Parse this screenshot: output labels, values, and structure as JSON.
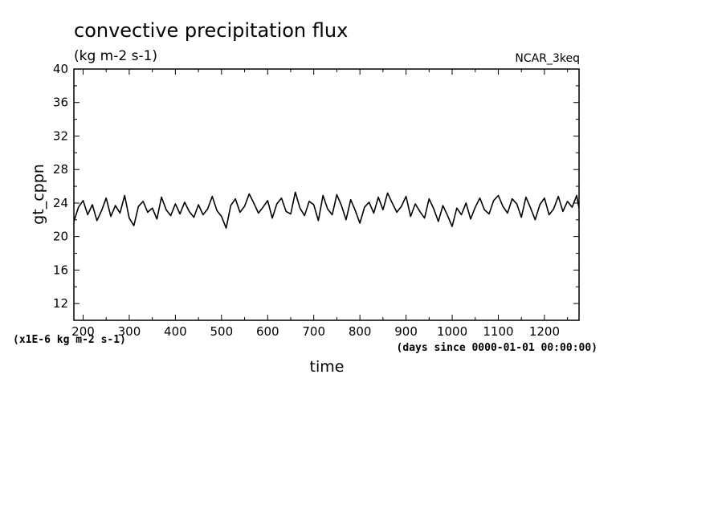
{
  "chart_data": {
    "type": "line",
    "title": "convective precipitation flux",
    "subtitle": "(kg m-2 s-1)",
    "source_label": "NCAR_3keq",
    "xlabel": "time",
    "ylabel": "gt_cppn",
    "x_unit_label": "(days since 0000-01-01 00:00:00)",
    "y_unit_label": "(x1E-6 kg m-2 s-1)",
    "xlim": [
      180,
      1275
    ],
    "ylim": [
      10,
      40
    ],
    "x_ticks": [
      200,
      300,
      400,
      500,
      600,
      700,
      800,
      900,
      1000,
      1100,
      1200
    ],
    "x_tick_labels": [
      "200",
      "300",
      "400",
      "500",
      "600",
      "700",
      "800",
      "900",
      "1000",
      "1100",
      "1200"
    ],
    "y_ticks": [
      12,
      16,
      20,
      24,
      28,
      32,
      36,
      40
    ],
    "y_tick_labels": [
      "12",
      "16",
      "20",
      "24",
      "28",
      "32",
      "36",
      "40"
    ],
    "grid": false,
    "series": [
      {
        "color": "#000000",
        "x": [
          180,
          190,
          200,
          210,
          220,
          230,
          240,
          250,
          260,
          270,
          280,
          290,
          300,
          310,
          320,
          330,
          340,
          350,
          360,
          370,
          380,
          390,
          400,
          410,
          420,
          430,
          440,
          450,
          460,
          470,
          480,
          490,
          500,
          510,
          520,
          530,
          540,
          550,
          560,
          570,
          580,
          590,
          600,
          610,
          620,
          630,
          640,
          650,
          660,
          670,
          680,
          690,
          700,
          710,
          720,
          730,
          740,
          750,
          760,
          770,
          780,
          790,
          800,
          810,
          820,
          830,
          840,
          850,
          860,
          870,
          880,
          890,
          900,
          910,
          920,
          930,
          940,
          950,
          960,
          970,
          980,
          990,
          1000,
          1010,
          1020,
          1030,
          1040,
          1050,
          1060,
          1070,
          1080,
          1090,
          1100,
          1110,
          1120,
          1130,
          1140,
          1150,
          1160,
          1170,
          1180,
          1190,
          1200,
          1210,
          1220,
          1230,
          1240,
          1250,
          1260,
          1270,
          1275
        ],
        "y": [
          21.8,
          23.5,
          24.3,
          22.6,
          23.8,
          21.9,
          23.1,
          24.6,
          22.4,
          23.7,
          22.8,
          24.9,
          22.2,
          21.3,
          23.6,
          24.2,
          22.9,
          23.4,
          22.1,
          24.7,
          23.2,
          22.5,
          23.9,
          22.7,
          24.1,
          23.0,
          22.3,
          23.8,
          22.6,
          23.3,
          24.8,
          23.1,
          22.4,
          21.0,
          23.7,
          24.5,
          22.9,
          23.6,
          25.1,
          24.0,
          22.8,
          23.5,
          24.3,
          22.2,
          23.9,
          24.6,
          23.0,
          22.7,
          25.3,
          23.4,
          22.5,
          24.2,
          23.8,
          21.9,
          24.9,
          23.3,
          22.6,
          25.0,
          23.7,
          22.0,
          24.4,
          23.1,
          21.6,
          23.5,
          24.1,
          22.8,
          24.7,
          23.2,
          25.2,
          24.0,
          22.9,
          23.6,
          24.8,
          22.4,
          23.9,
          23.0,
          22.2,
          24.5,
          23.3,
          21.8,
          23.7,
          22.5,
          21.2,
          23.4,
          22.6,
          24.0,
          22.1,
          23.5,
          24.6,
          23.2,
          22.7,
          24.3,
          24.9,
          23.6,
          22.8,
          24.5,
          23.9,
          22.3,
          24.7,
          23.4,
          22.0,
          23.8,
          24.6,
          22.6,
          23.3,
          24.8,
          23.0,
          24.2,
          23.5,
          24.9,
          23.4
        ]
      }
    ]
  }
}
